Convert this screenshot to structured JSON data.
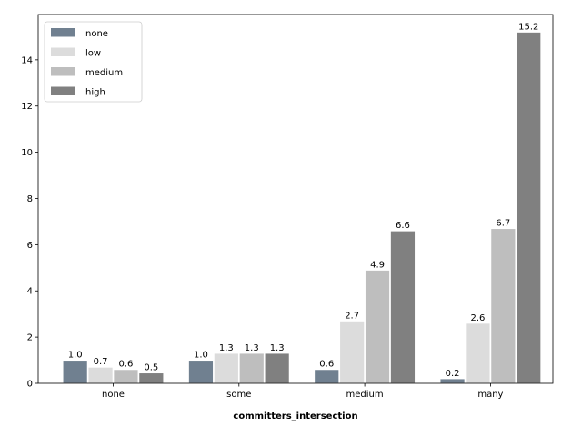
{
  "chart_data": {
    "type": "bar",
    "title": "",
    "xlabel": "committers_intersection",
    "ylabel": "",
    "categories": [
      "none",
      "some",
      "medium",
      "many"
    ],
    "ylim": [
      0,
      15.96
    ],
    "yticks": [
      0,
      2,
      4,
      6,
      8,
      10,
      12,
      14
    ],
    "grid": false,
    "legend_position": "top-left",
    "series": [
      {
        "name": "none",
        "color": "#708090",
        "values": [
          1.0,
          1.0,
          0.6,
          0.2
        ],
        "labels": [
          "1.0",
          "1.0",
          "0.6",
          "0.2"
        ]
      },
      {
        "name": "low",
        "color": "#dcdcdc",
        "values": [
          0.7,
          1.3,
          2.7,
          2.6
        ],
        "labels": [
          "0.7",
          "1.3",
          "2.7",
          "2.6"
        ]
      },
      {
        "name": "medium",
        "color": "#bebebe",
        "values": [
          0.6,
          1.3,
          4.9,
          6.7
        ],
        "labels": [
          "0.6",
          "1.3",
          "4.9",
          "6.7"
        ]
      },
      {
        "name": "high",
        "color": "#808080",
        "values": [
          0.45,
          1.3,
          6.6,
          15.2
        ],
        "labels": [
          "0.5",
          "1.3",
          "6.6",
          "15.2"
        ]
      }
    ]
  }
}
